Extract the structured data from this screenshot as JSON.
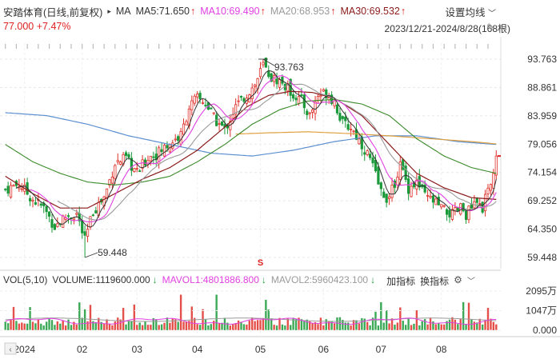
{
  "header": {
    "title": "安踏体育(日线,前复权)",
    "ma_label": "MA",
    "ma5": "MA5:71.650",
    "ma10": "MA10:69.490",
    "ma20": "MA20:68.953",
    "ma30": "MA30:69.532",
    "settings": "设置均线",
    "price": "77.000",
    "change": "+7.47%",
    "range": "2023/12/21-2024/8/28(168根)"
  },
  "volume_header": {
    "vol_label": "VOL(5,10)",
    "volume": "VOLUME:1119600.000",
    "mavol1": "MAVOL1:4801886.800",
    "mavol2": "MAVOL2:5960423.100",
    "add_indicator": "加指标",
    "switch_indicator": "换指标"
  },
  "colors": {
    "up": "#e0302a",
    "down": "#1a9a3a",
    "ma5": "#333333",
    "ma10": "#e040e0",
    "ma20": "#9a9a9a",
    "ma30": "#8b1a1a",
    "ma60": "#3a8a2a",
    "ma120": "#5b8fd0",
    "ma250": "#e0a040"
  },
  "chart_data": {
    "type": "candlestick",
    "y_ticks": [
      "93.763",
      "88.861",
      "83.959",
      "79.056",
      "74.154",
      "69.252",
      "64.350",
      "59.448"
    ],
    "ylim": [
      59.448,
      93.763
    ],
    "volume_ticks": [
      "2095万",
      "1047万",
      "0.000"
    ],
    "volume_ylim": [
      0,
      2095
    ],
    "x_labels": [
      "2024",
      "02",
      "03",
      "04",
      "05",
      "06",
      "07",
      "08"
    ],
    "x_label_index": [
      7,
      28,
      48,
      70,
      93,
      116,
      137,
      159
    ],
    "annotations": [
      {
        "label": "93.763",
        "index": 94,
        "value": 93.763,
        "type": "high"
      },
      {
        "label": "59.448",
        "index": 29,
        "value": 59.448,
        "type": "low"
      }
    ],
    "waypoints_close": [
      [
        0,
        71.2
      ],
      [
        5,
        72.2
      ],
      [
        10,
        69.5
      ],
      [
        14,
        68.0
      ],
      [
        18,
        64.8
      ],
      [
        22,
        66.5
      ],
      [
        26,
        67.0
      ],
      [
        29,
        62.3
      ],
      [
        32,
        67.5
      ],
      [
        36,
        69.8
      ],
      [
        40,
        75.8
      ],
      [
        44,
        76.5
      ],
      [
        48,
        74.0
      ],
      [
        52,
        76.8
      ],
      [
        56,
        77.6
      ],
      [
        60,
        79.3
      ],
      [
        64,
        80.5
      ],
      [
        67,
        85.5
      ],
      [
        70,
        87.0
      ],
      [
        73,
        86.2
      ],
      [
        76,
        83.5
      ],
      [
        80,
        81.5
      ],
      [
        84,
        85.5
      ],
      [
        88,
        87.7
      ],
      [
        91,
        89.3
      ],
      [
        94,
        92.7
      ],
      [
        97,
        90.5
      ],
      [
        100,
        90.0
      ],
      [
        104,
        88.2
      ],
      [
        108,
        86.5
      ],
      [
        111,
        84.0
      ],
      [
        114,
        87.5
      ],
      [
        117,
        88.0
      ],
      [
        120,
        86.5
      ],
      [
        123,
        82.5
      ],
      [
        126,
        82.0
      ],
      [
        130,
        79.0
      ],
      [
        133,
        76.5
      ],
      [
        137,
        70.8
      ],
      [
        140,
        69.5
      ],
      [
        144,
        75.5
      ],
      [
        147,
        71.5
      ],
      [
        150,
        72.5
      ],
      [
        153,
        70.0
      ],
      [
        156,
        69.2
      ],
      [
        160,
        67.5
      ],
      [
        163,
        66.8
      ],
      [
        166,
        68.0
      ],
      [
        168,
        67.0
      ],
      [
        171,
        68.5
      ],
      [
        174,
        68.2
      ],
      [
        177,
        71.8
      ],
      [
        179,
        77.0
      ]
    ],
    "ma30_waypoints": [
      [
        0,
        73.5
      ],
      [
        10,
        70.5
      ],
      [
        20,
        68.0
      ],
      [
        30,
        68.0
      ],
      [
        40,
        70.5
      ],
      [
        50,
        73.0
      ],
      [
        60,
        75.0
      ],
      [
        70,
        78.0
      ],
      [
        80,
        82.0
      ],
      [
        88,
        85.5
      ],
      [
        96,
        87.5
      ],
      [
        104,
        88.2
      ],
      [
        112,
        88.0
      ],
      [
        120,
        87.0
      ],
      [
        130,
        84.0
      ],
      [
        140,
        79.0
      ],
      [
        150,
        74.0
      ],
      [
        160,
        71.5
      ],
      [
        170,
        69.8
      ],
      [
        179,
        69.5
      ]
    ],
    "ma60_waypoints": [
      [
        0,
        79.0
      ],
      [
        10,
        76.0
      ],
      [
        20,
        74.0
      ],
      [
        30,
        72.5
      ],
      [
        40,
        72.0
      ],
      [
        50,
        72.5
      ],
      [
        60,
        73.5
      ],
      [
        70,
        76.0
      ],
      [
        80,
        79.0
      ],
      [
        90,
        82.5
      ],
      [
        100,
        85.0
      ],
      [
        110,
        86.5
      ],
      [
        120,
        86.8
      ],
      [
        130,
        86.0
      ],
      [
        140,
        84.0
      ],
      [
        150,
        80.0
      ],
      [
        160,
        77.0
      ],
      [
        170,
        75.0
      ],
      [
        179,
        74.0
      ]
    ],
    "ma120_waypoints": [
      [
        0,
        84.5
      ],
      [
        15,
        84.0
      ],
      [
        30,
        82.5
      ],
      [
        45,
        80.5
      ],
      [
        60,
        79.0
      ],
      [
        75,
        77.5
      ],
      [
        90,
        77.0
      ],
      [
        105,
        78.0
      ],
      [
        120,
        79.5
      ],
      [
        135,
        80.5
      ],
      [
        150,
        80.5
      ],
      [
        165,
        79.5
      ],
      [
        179,
        79.0
      ]
    ],
    "ma250_waypoints": [
      [
        84,
        80.8
      ],
      [
        95,
        81.0
      ],
      [
        110,
        81.2
      ],
      [
        125,
        80.9
      ],
      [
        140,
        80.5
      ],
      [
        155,
        80.0
      ],
      [
        170,
        79.5
      ],
      [
        179,
        79.1
      ]
    ]
  }
}
